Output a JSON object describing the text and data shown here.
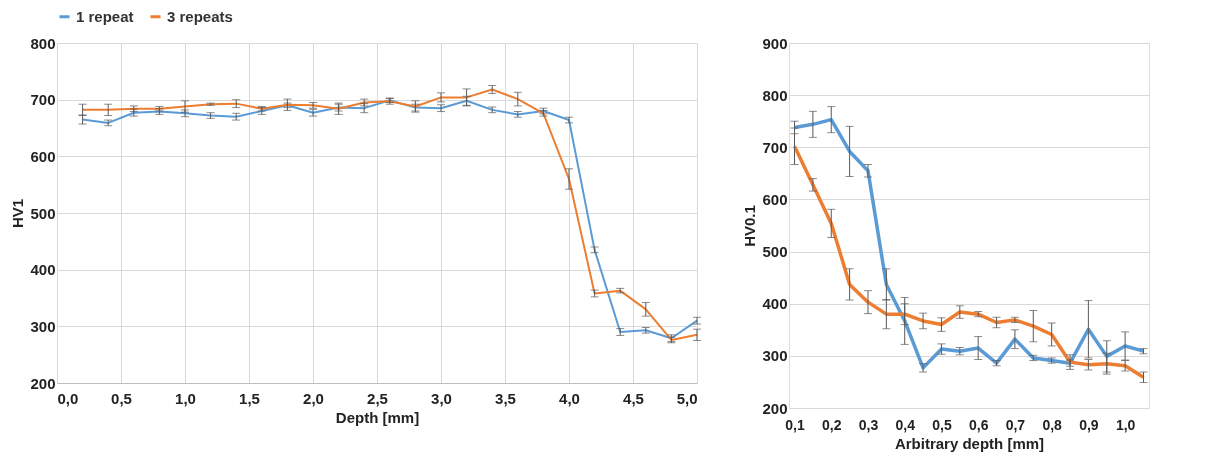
{
  "chart_data": [
    {
      "type": "line",
      "xlabel": "Depth [mm]",
      "ylabel": "HV1",
      "legend": "top",
      "grid": true,
      "x": [
        0.2,
        0.4,
        0.6,
        0.8,
        1,
        1.2,
        1.4,
        1.6,
        1.8,
        2,
        2.2,
        2.4,
        2.6,
        2.8,
        3,
        3.2,
        3.4,
        3.6,
        3.8,
        4,
        4.2,
        4.4,
        4.6,
        4.8,
        5
      ],
      "xlim": [
        0,
        5
      ],
      "xticks": [
        {
          "value": 0,
          "label": "0,0"
        },
        {
          "value": 0.5,
          "label": "0,5"
        },
        {
          "value": 1,
          "label": "1,0"
        },
        {
          "value": 1.5,
          "label": "1,5"
        },
        {
          "value": 2,
          "label": "2,0"
        },
        {
          "value": 2.5,
          "label": "2,5"
        },
        {
          "value": 3,
          "label": "3,0"
        },
        {
          "value": 3.5,
          "label": "3,5"
        },
        {
          "value": 4,
          "label": "4,0"
        },
        {
          "value": 4.5,
          "label": "4,5"
        },
        {
          "value": 5,
          "label": "5,0"
        }
      ],
      "ylim": [
        200,
        800
      ],
      "yticks": [
        200,
        300,
        400,
        500,
        600,
        700,
        800
      ],
      "series": [
        {
          "name": "1 repeat",
          "color": "#5b9bd5",
          "values": [
            665,
            659,
            677,
            679,
            676,
            672,
            670,
            680,
            690,
            677,
            686,
            685,
            699,
            686,
            685,
            698,
            682,
            674,
            680,
            664,
            435,
            290,
            293,
            279,
            310
          ],
          "errors": [
            8,
            5,
            6,
            5,
            6,
            5,
            6,
            6,
            4,
            6,
            6,
            8,
            4,
            6,
            6,
            8,
            5,
            5,
            5,
            5,
            5,
            6,
            5,
            6,
            6
          ]
        },
        {
          "name": "3 repeats",
          "color": "#ed7d31",
          "values": [
            682,
            682,
            684,
            684,
            688,
            692,
            693,
            684,
            691,
            690,
            684,
            695,
            697,
            688,
            704,
            704,
            718,
            701,
            676,
            560,
            358,
            363,
            330,
            276,
            285
          ],
          "errors": [
            10,
            10,
            5,
            4,
            10,
            2,
            7,
            4,
            10,
            5,
            10,
            6,
            5,
            10,
            8,
            15,
            7,
            12,
            5,
            18,
            6,
            4,
            12,
            5,
            10
          ]
        }
      ]
    },
    {
      "type": "line",
      "xlabel": "Arbitrary depth [mm]",
      "ylabel": "HV0.1",
      "grid": "y",
      "categories": [
        "0,1",
        null,
        "0,2",
        null,
        "0,3",
        null,
        "0,4",
        null,
        "0,5",
        null,
        "0,6",
        null,
        "0,7",
        null,
        "0,8",
        null,
        "0,9",
        null,
        "1,0",
        null
      ],
      "ylim": [
        200,
        900
      ],
      "yticks": [
        200,
        300,
        400,
        500,
        600,
        700,
        800,
        900
      ],
      "series": [
        {
          "color": "#5b9bd5",
          "values": [
            738,
            744,
            753,
            692,
            655,
            437,
            367,
            277,
            313,
            309,
            315,
            286,
            332,
            296,
            291,
            286,
            351,
            299,
            319,
            309
          ],
          "errors": [
            12,
            25,
            25,
            48,
            12,
            30,
            45,
            8,
            10,
            7,
            22,
            5,
            18,
            5,
            5,
            6,
            55,
            30,
            27,
            5
          ]
        },
        {
          "color": "#ed7d31",
          "values": [
            702,
            628,
            554,
            437,
            403,
            380,
            380,
            367,
            360,
            384,
            380,
            364,
            369,
            357,
            341,
            288,
            283,
            285,
            281,
            259
          ],
          "errors": [
            35,
            12,
            27,
            30,
            22,
            28,
            20,
            15,
            13,
            12,
            5,
            10,
            5,
            30,
            22,
            14,
            10,
            20,
            10,
            10
          ]
        }
      ]
    }
  ]
}
